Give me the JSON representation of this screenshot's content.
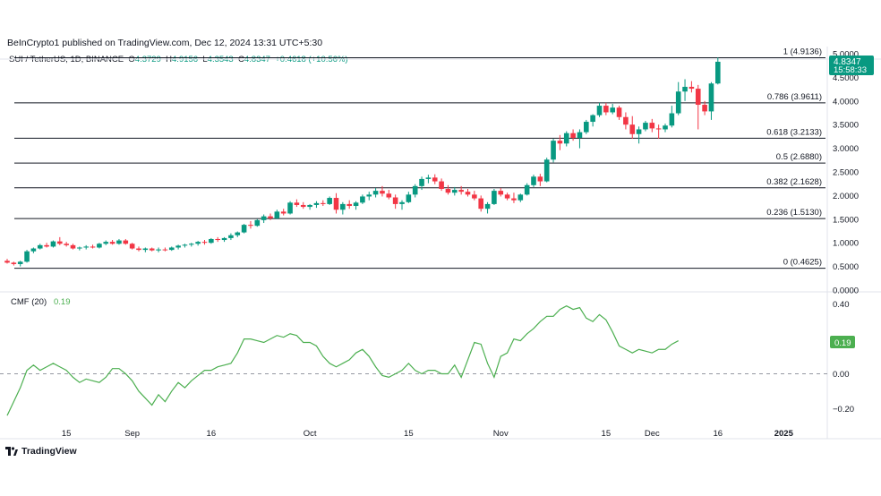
{
  "publisher": "BeInCrypto1 published on TradingView.com, Dec 12, 2024 13:31 UTC+5:30",
  "symbol": "SUI / TetherUS, 1D, BINANCE",
  "ohlc": {
    "o_label": "O",
    "o": "4.3729",
    "h_label": "H",
    "h": "4.9156",
    "l_label": "L",
    "l": "4.3543",
    "c_label": "C",
    "c": "4.8347",
    "change": "+0.4618 (+10.56%)"
  },
  "price_badge": {
    "price": "4.8347",
    "countdown": "15:58:33"
  },
  "cmf": {
    "label": "CMF (20)",
    "value": "0.19",
    "badge": "0.19"
  },
  "footer": {
    "logo_text": "TradingView"
  },
  "colors": {
    "up": "#089981",
    "down": "#F23645",
    "cmf_line": "#4CAF50",
    "accent": "#089981"
  },
  "chart_data": [
    {
      "type": "candlestick",
      "ylim": [
        0,
        5.0
      ],
      "y_ticks": [
        "0.0000",
        "0.5000",
        "1.0000",
        "1.5000",
        "2.0000",
        "2.5000",
        "3.0000",
        "3.5000",
        "4.0000",
        "4.5000",
        "5.0000"
      ],
      "x_tick_labels": [
        "15",
        "Sep",
        "16",
        "Oct",
        "15",
        "Nov",
        "15",
        "Dec",
        "16",
        "2025"
      ],
      "fib_levels": [
        {
          "label": "1 (4.9136)",
          "value": 4.9136
        },
        {
          "label": "0.786 (3.9611)",
          "value": 3.9611
        },
        {
          "label": "0.618 (3.2133)",
          "value": 3.2133
        },
        {
          "label": "0.5 (2.6880)",
          "value": 2.688
        },
        {
          "label": "0.382 (2.1628)",
          "value": 2.1628
        },
        {
          "label": "0.236 (1.5130)",
          "value": 1.513
        },
        {
          "label": "0 (0.4625)",
          "value": 0.4625
        }
      ],
      "candles": [
        [
          0.62,
          0.66,
          0.56,
          0.58
        ],
        [
          0.58,
          0.6,
          0.52,
          0.55
        ],
        [
          0.55,
          0.62,
          0.5,
          0.6
        ],
        [
          0.6,
          0.85,
          0.58,
          0.82
        ],
        [
          0.82,
          0.9,
          0.78,
          0.88
        ],
        [
          0.88,
          0.98,
          0.86,
          0.95
        ],
        [
          0.95,
          1.0,
          0.9,
          0.92
        ],
        [
          0.92,
          1.05,
          0.9,
          1.03
        ],
        [
          1.03,
          1.12,
          0.95,
          0.98
        ],
        [
          0.98,
          1.02,
          0.92,
          0.95
        ],
        [
          0.95,
          0.98,
          0.86,
          0.88
        ],
        [
          0.88,
          0.92,
          0.84,
          0.9
        ],
        [
          0.9,
          0.95,
          0.86,
          0.92
        ],
        [
          0.92,
          0.96,
          0.88,
          0.9
        ],
        [
          0.9,
          1.0,
          0.88,
          0.98
        ],
        [
          0.98,
          1.05,
          0.95,
          1.02
        ],
        [
          1.02,
          1.06,
          0.96,
          0.98
        ],
        [
          0.98,
          1.08,
          0.96,
          1.05
        ],
        [
          1.05,
          1.08,
          0.96,
          0.98
        ],
        [
          0.98,
          1.0,
          0.86,
          0.88
        ],
        [
          0.88,
          0.92,
          0.82,
          0.85
        ],
        [
          0.85,
          0.9,
          0.8,
          0.88
        ],
        [
          0.88,
          0.9,
          0.82,
          0.84
        ],
        [
          0.84,
          0.9,
          0.8,
          0.86
        ],
        [
          0.86,
          0.9,
          0.82,
          0.85
        ],
        [
          0.85,
          0.92,
          0.83,
          0.9
        ],
        [
          0.9,
          0.96,
          0.86,
          0.94
        ],
        [
          0.94,
          0.98,
          0.9,
          0.96
        ],
        [
          0.96,
          1.0,
          0.92,
          0.98
        ],
        [
          0.98,
          1.04,
          0.94,
          1.02
        ],
        [
          1.02,
          1.06,
          0.96,
          1.0
        ],
        [
          1.0,
          1.1,
          0.98,
          1.08
        ],
        [
          1.08,
          1.12,
          1.02,
          1.06
        ],
        [
          1.06,
          1.12,
          1.02,
          1.1
        ],
        [
          1.1,
          1.2,
          1.06,
          1.16
        ],
        [
          1.16,
          1.24,
          1.12,
          1.22
        ],
        [
          1.22,
          1.4,
          1.2,
          1.38
        ],
        [
          1.38,
          1.46,
          1.3,
          1.36
        ],
        [
          1.36,
          1.5,
          1.34,
          1.48
        ],
        [
          1.48,
          1.6,
          1.42,
          1.56
        ],
        [
          1.56,
          1.62,
          1.48,
          1.52
        ],
        [
          1.52,
          1.7,
          1.5,
          1.66
        ],
        [
          1.66,
          1.72,
          1.58,
          1.62
        ],
        [
          1.62,
          1.88,
          1.6,
          1.85
        ],
        [
          1.85,
          1.92,
          1.76,
          1.8
        ],
        [
          1.8,
          1.86,
          1.72,
          1.76
        ],
        [
          1.76,
          1.82,
          1.7,
          1.8
        ],
        [
          1.8,
          1.88,
          1.74,
          1.84
        ],
        [
          1.84,
          1.9,
          1.78,
          1.82
        ],
        [
          1.82,
          1.98,
          1.8,
          1.95
        ],
        [
          1.95,
          2.05,
          1.62,
          1.7
        ],
        [
          1.7,
          1.86,
          1.6,
          1.82
        ],
        [
          1.82,
          1.9,
          1.72,
          1.78
        ],
        [
          1.78,
          1.88,
          1.7,
          1.85
        ],
        [
          1.85,
          2.02,
          1.82,
          1.98
        ],
        [
          1.98,
          2.08,
          1.9,
          2.02
        ],
        [
          2.02,
          2.16,
          1.96,
          2.1
        ],
        [
          2.1,
          2.2,
          1.98,
          2.04
        ],
        [
          2.04,
          2.12,
          1.92,
          1.96
        ],
        [
          1.96,
          2.02,
          1.72,
          1.82
        ],
        [
          1.82,
          1.9,
          1.7,
          1.86
        ],
        [
          1.86,
          2.08,
          1.84,
          2.02
        ],
        [
          2.02,
          2.24,
          1.96,
          2.2
        ],
        [
          2.2,
          2.4,
          2.12,
          2.35
        ],
        [
          2.35,
          2.44,
          2.26,
          2.38
        ],
        [
          2.38,
          2.45,
          2.24,
          2.3
        ],
        [
          2.3,
          2.36,
          2.1,
          2.14
        ],
        [
          2.14,
          2.22,
          2.02,
          2.06
        ],
        [
          2.06,
          2.18,
          2.0,
          2.12
        ],
        [
          2.12,
          2.2,
          2.02,
          2.08
        ],
        [
          2.08,
          2.14,
          1.98,
          2.02
        ],
        [
          2.02,
          2.1,
          1.9,
          1.94
        ],
        [
          1.94,
          2.0,
          1.66,
          1.72
        ],
        [
          1.72,
          1.86,
          1.62,
          1.82
        ],
        [
          1.82,
          2.14,
          1.8,
          2.1
        ],
        [
          2.1,
          2.16,
          1.98,
          2.02
        ],
        [
          2.02,
          2.06,
          1.9,
          1.94
        ],
        [
          1.94,
          2.06,
          1.84,
          1.9
        ],
        [
          1.9,
          2.04,
          1.86,
          2.02
        ],
        [
          2.02,
          2.26,
          2.0,
          2.22
        ],
        [
          2.22,
          2.44,
          2.18,
          2.4
        ],
        [
          2.4,
          2.46,
          2.2,
          2.3
        ],
        [
          2.3,
          2.8,
          2.28,
          2.76
        ],
        [
          2.76,
          3.2,
          2.7,
          3.16
        ],
        [
          3.16,
          3.28,
          2.96,
          3.1
        ],
        [
          3.1,
          3.36,
          3.04,
          3.32
        ],
        [
          3.32,
          3.4,
          3.16,
          3.22
        ],
        [
          3.22,
          3.4,
          3.0,
          3.34
        ],
        [
          3.34,
          3.6,
          3.3,
          3.56
        ],
        [
          3.56,
          3.72,
          3.46,
          3.7
        ],
        [
          3.7,
          3.96,
          3.66,
          3.9
        ],
        [
          3.9,
          3.96,
          3.7,
          3.76
        ],
        [
          3.76,
          3.94,
          3.72,
          3.86
        ],
        [
          3.86,
          3.9,
          3.6,
          3.66
        ],
        [
          3.66,
          3.76,
          3.4,
          3.5
        ],
        [
          3.5,
          3.68,
          3.2,
          3.3
        ],
        [
          3.3,
          3.46,
          3.1,
          3.4
        ],
        [
          3.4,
          3.58,
          3.36,
          3.54
        ],
        [
          3.54,
          3.62,
          3.34,
          3.42
        ],
        [
          3.42,
          3.5,
          3.2,
          3.4
        ],
        [
          3.4,
          3.52,
          3.34,
          3.48
        ],
        [
          3.48,
          3.9,
          3.44,
          3.74
        ],
        [
          3.74,
          4.4,
          3.7,
          4.2
        ],
        [
          4.2,
          4.46,
          4.0,
          4.3
        ],
        [
          4.3,
          4.42,
          4.18,
          4.26
        ],
        [
          4.26,
          4.34,
          3.4,
          3.92
        ],
        [
          3.92,
          4.0,
          3.7,
          3.78
        ],
        [
          3.78,
          4.4,
          3.6,
          4.37
        ],
        [
          4.37,
          4.92,
          4.35,
          4.83
        ]
      ]
    },
    {
      "type": "line",
      "name": "CMF (20)",
      "ylim": [
        -0.27,
        0.45
      ],
      "y_ticks": [
        "0.40",
        "0.00",
        "−0.20"
      ],
      "values": [
        -0.24,
        -0.16,
        -0.08,
        0.02,
        0.05,
        0.02,
        0.04,
        0.06,
        0.04,
        0.02,
        -0.02,
        -0.05,
        -0.03,
        -0.04,
        -0.05,
        -0.02,
        0.03,
        0.03,
        0.0,
        -0.04,
        -0.1,
        -0.14,
        -0.18,
        -0.12,
        -0.16,
        -0.1,
        -0.05,
        -0.08,
        -0.04,
        -0.01,
        0.02,
        0.02,
        0.04,
        0.05,
        0.06,
        0.12,
        0.2,
        0.2,
        0.19,
        0.18,
        0.2,
        0.22,
        0.21,
        0.23,
        0.22,
        0.18,
        0.18,
        0.16,
        0.1,
        0.06,
        0.04,
        0.06,
        0.08,
        0.12,
        0.14,
        0.1,
        0.04,
        -0.01,
        -0.02,
        0.0,
        0.02,
        0.06,
        0.02,
        0.0,
        0.02,
        0.02,
        0.0,
        0.0,
        0.05,
        -0.02,
        0.08,
        0.18,
        0.17,
        0.06,
        -0.02,
        0.1,
        0.12,
        0.2,
        0.19,
        0.23,
        0.26,
        0.3,
        0.33,
        0.33,
        0.37,
        0.39,
        0.37,
        0.38,
        0.32,
        0.3,
        0.34,
        0.31,
        0.24,
        0.16,
        0.14,
        0.12,
        0.14,
        0.13,
        0.12,
        0.14,
        0.14,
        0.17,
        0.19
      ]
    }
  ]
}
